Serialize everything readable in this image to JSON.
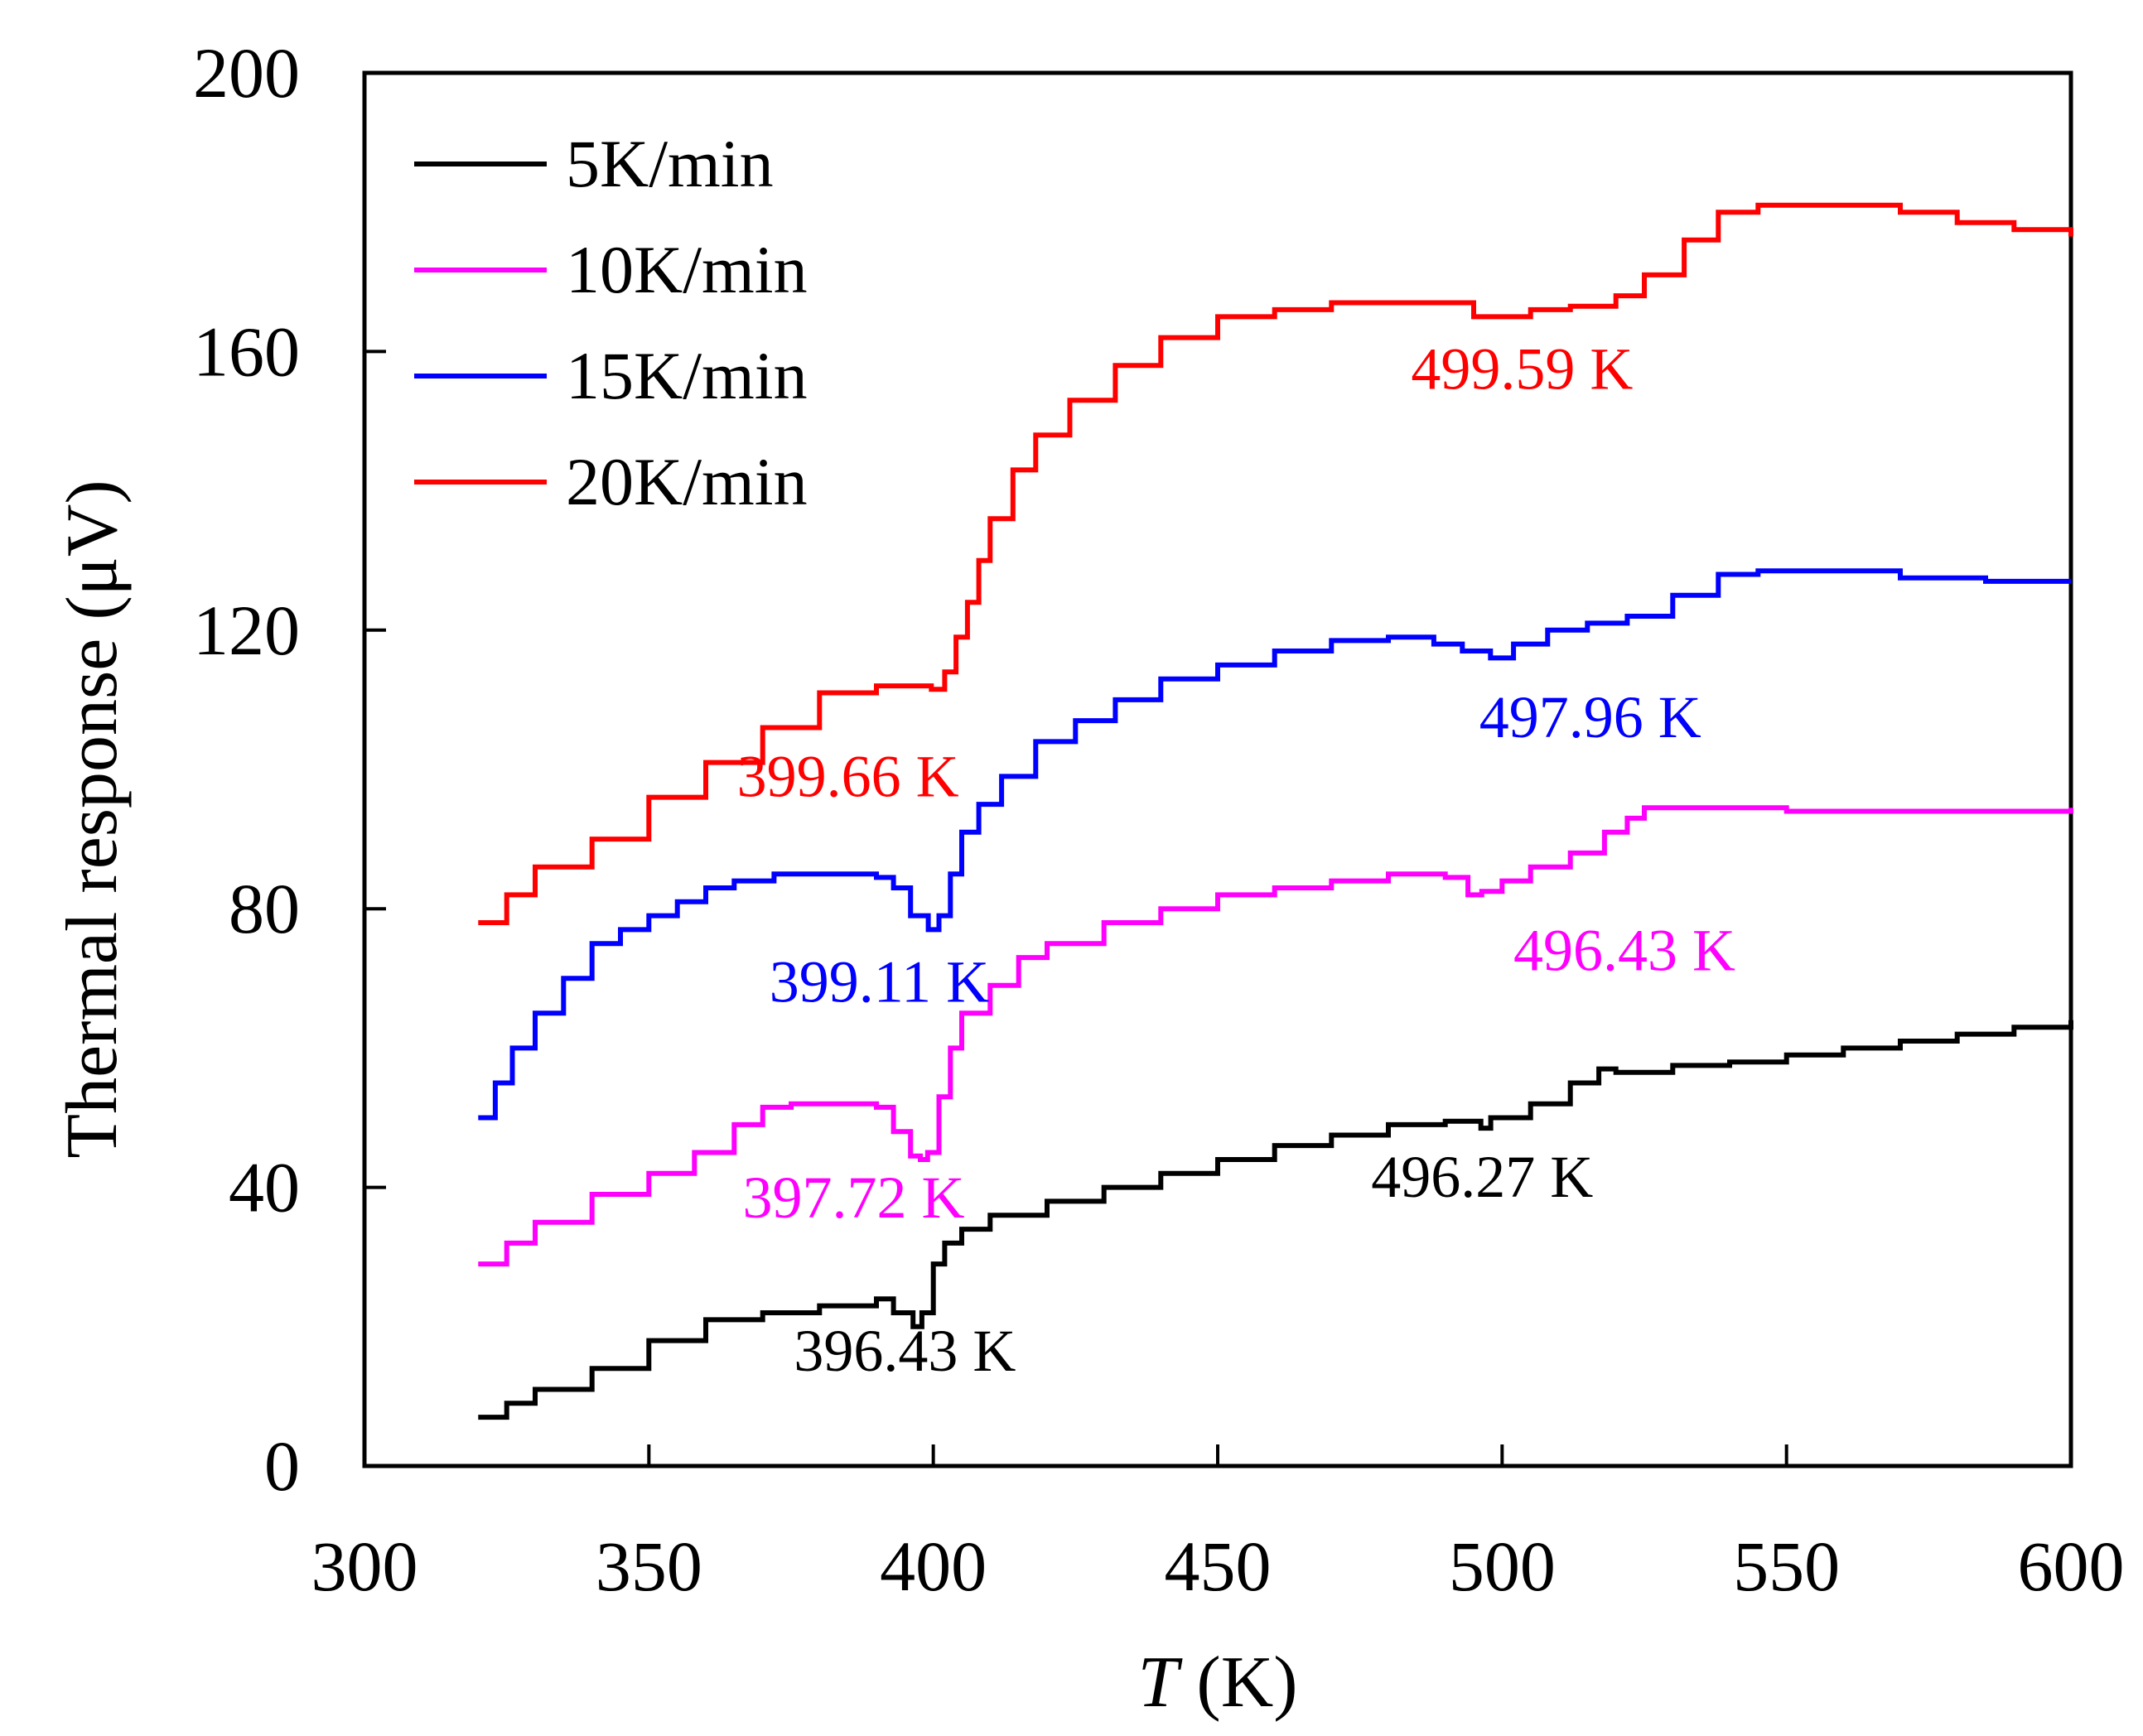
{
  "chart_data": {
    "type": "line",
    "title": "",
    "xlabel_italic": "T",
    "xlabel_unit": "(K)",
    "ylabel": "Thermal response  (μV)",
    "xlim": [
      300,
      600
    ],
    "ylim": [
      0,
      200
    ],
    "xticks": [
      300,
      350,
      400,
      450,
      500,
      550,
      600
    ],
    "yticks": [
      0,
      40,
      80,
      120,
      160,
      200
    ],
    "grid": false,
    "legend_position": "top-left",
    "series": [
      {
        "name": "5K/min",
        "color": "#000000",
        "points": [
          [
            320,
            7
          ],
          [
            325,
            9
          ],
          [
            330,
            11
          ],
          [
            340,
            14
          ],
          [
            350,
            18
          ],
          [
            360,
            21
          ],
          [
            370,
            22
          ],
          [
            380,
            23
          ],
          [
            390,
            24
          ],
          [
            393,
            22
          ],
          [
            396.43,
            20
          ],
          [
            398,
            22
          ],
          [
            400,
            29
          ],
          [
            402,
            32
          ],
          [
            405,
            34
          ],
          [
            410,
            36
          ],
          [
            420,
            38
          ],
          [
            430,
            40
          ],
          [
            440,
            42
          ],
          [
            450,
            44
          ],
          [
            460,
            46
          ],
          [
            470,
            47.5
          ],
          [
            480,
            49
          ],
          [
            490,
            49.5
          ],
          [
            494,
            49.5
          ],
          [
            496.27,
            48.5
          ],
          [
            498,
            50
          ],
          [
            505,
            52
          ],
          [
            512,
            55
          ],
          [
            517,
            57
          ],
          [
            520,
            56.5
          ],
          [
            530,
            57.5
          ],
          [
            540,
            58
          ],
          [
            550,
            59
          ],
          [
            560,
            60
          ],
          [
            570,
            61
          ],
          [
            580,
            62
          ],
          [
            590,
            63
          ],
          [
            600,
            64
          ]
        ]
      },
      {
        "name": "10K/min",
        "color": "#ff00ff",
        "points": [
          [
            320,
            29
          ],
          [
            325,
            32
          ],
          [
            330,
            35
          ],
          [
            340,
            39
          ],
          [
            350,
            42
          ],
          [
            358,
            45
          ],
          [
            365,
            49
          ],
          [
            370,
            51.5
          ],
          [
            375,
            52
          ],
          [
            385,
            52
          ],
          [
            390,
            51.5
          ],
          [
            393,
            48
          ],
          [
            396,
            44.5
          ],
          [
            397.72,
            44
          ],
          [
            399,
            45
          ],
          [
            401,
            53
          ],
          [
            403,
            60
          ],
          [
            405,
            65
          ],
          [
            410,
            69
          ],
          [
            415,
            73
          ],
          [
            420,
            75
          ],
          [
            430,
            78
          ],
          [
            440,
            80
          ],
          [
            450,
            82
          ],
          [
            460,
            83
          ],
          [
            470,
            84
          ],
          [
            480,
            85
          ],
          [
            485,
            85
          ],
          [
            490,
            84.5
          ],
          [
            494,
            82
          ],
          [
            496.43,
            82.5
          ],
          [
            500,
            84
          ],
          [
            505,
            86
          ],
          [
            512,
            88
          ],
          [
            518,
            91
          ],
          [
            522,
            93
          ],
          [
            525,
            94.5
          ],
          [
            530,
            94.5
          ],
          [
            545,
            94.5
          ],
          [
            550,
            94
          ],
          [
            580,
            94
          ],
          [
            600,
            94.5
          ]
        ]
      },
      {
        "name": "15K/min",
        "color": "#0000ff",
        "points": [
          [
            320,
            50
          ],
          [
            323,
            55
          ],
          [
            326,
            60
          ],
          [
            330,
            65
          ],
          [
            335,
            70
          ],
          [
            340,
            75
          ],
          [
            345,
            77
          ],
          [
            350,
            79
          ],
          [
            355,
            81
          ],
          [
            360,
            83
          ],
          [
            365,
            84
          ],
          [
            372,
            85
          ],
          [
            378,
            85
          ],
          [
            385,
            85
          ],
          [
            390,
            84.5
          ],
          [
            393,
            83
          ],
          [
            396,
            79
          ],
          [
            399.11,
            77
          ],
          [
            401,
            79
          ],
          [
            403,
            85
          ],
          [
            405,
            91
          ],
          [
            408,
            95
          ],
          [
            412,
            99
          ],
          [
            418,
            104
          ],
          [
            425,
            107
          ],
          [
            432,
            110
          ],
          [
            440,
            113
          ],
          [
            450,
            115
          ],
          [
            460,
            117
          ],
          [
            470,
            118.5
          ],
          [
            480,
            119
          ],
          [
            488,
            118
          ],
          [
            493,
            117
          ],
          [
            497.96,
            116
          ],
          [
            502,
            118
          ],
          [
            508,
            120
          ],
          [
            515,
            121
          ],
          [
            522,
            122
          ],
          [
            530,
            125
          ],
          [
            538,
            128
          ],
          [
            545,
            128.5
          ],
          [
            555,
            128.5
          ],
          [
            570,
            127.5
          ],
          [
            585,
            127
          ],
          [
            600,
            127
          ]
        ]
      },
      {
        "name": "20K/min",
        "color": "#ff0000",
        "points": [
          [
            320,
            78
          ],
          [
            325,
            82
          ],
          [
            330,
            86
          ],
          [
            340,
            90
          ],
          [
            350,
            96
          ],
          [
            360,
            101
          ],
          [
            370,
            106
          ],
          [
            380,
            111
          ],
          [
            390,
            112
          ],
          [
            395,
            112
          ],
          [
            399.66,
            111.5
          ],
          [
            402,
            114
          ],
          [
            404,
            119
          ],
          [
            406,
            124
          ],
          [
            408,
            130
          ],
          [
            410,
            136
          ],
          [
            414,
            143
          ],
          [
            418,
            148
          ],
          [
            424,
            153
          ],
          [
            432,
            158
          ],
          [
            440,
            162
          ],
          [
            450,
            165
          ],
          [
            460,
            166
          ],
          [
            470,
            167
          ],
          [
            480,
            167
          ],
          [
            490,
            167
          ],
          [
            495,
            165
          ],
          [
            499.59,
            165
          ],
          [
            505,
            166
          ],
          [
            512,
            166.5
          ],
          [
            520,
            168
          ],
          [
            525,
            171
          ],
          [
            532,
            176
          ],
          [
            538,
            180
          ],
          [
            545,
            181
          ],
          [
            560,
            181
          ],
          [
            570,
            180
          ],
          [
            580,
            178.5
          ],
          [
            590,
            177.5
          ],
          [
            600,
            176.5
          ]
        ]
      }
    ],
    "annotations": [
      {
        "text": "396.43 K",
        "x": 395,
        "y": 16.5,
        "color": "#000000"
      },
      {
        "text": "496.27 K",
        "x": 496.5,
        "y": 41.5,
        "color": "#000000"
      },
      {
        "text": "397.72 K",
        "x": 386,
        "y": 38.5,
        "color": "#ff00ff"
      },
      {
        "text": "496.43 K",
        "x": 521.5,
        "y": 74,
        "color": "#ff00ff"
      },
      {
        "text": "399.11 K",
        "x": 390.5,
        "y": 69.5,
        "color": "#0000ff"
      },
      {
        "text": "497.96 K",
        "x": 515.5,
        "y": 107.5,
        "color": "#0000ff"
      },
      {
        "text": "399.66 K",
        "x": 385,
        "y": 99,
        "color": "#ff0000"
      },
      {
        "text": "499.59 K",
        "x": 503.5,
        "y": 157.5,
        "color": "#ff0000"
      }
    ]
  }
}
